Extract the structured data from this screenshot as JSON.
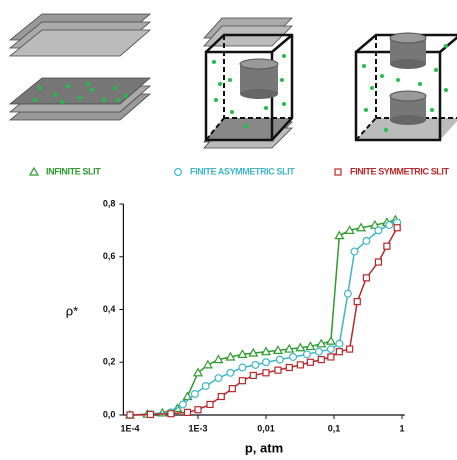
{
  "chart_data": {
    "type": "line",
    "xscale": "log",
    "x_label": "p, atm",
    "y_label": "ρ*",
    "xlim": [
      8e-05,
      1.1
    ],
    "xticks": [
      {
        "value": 0.0001,
        "label": "1E-4"
      },
      {
        "value": 0.001,
        "label": "1E-3"
      },
      {
        "value": 0.01,
        "label": "0,01"
      },
      {
        "value": 0.1,
        "label": "0,1"
      },
      1
    ],
    "ylim": [
      0,
      0.8
    ],
    "yticks": [
      {
        "value": 0,
        "label": "0,0"
      },
      {
        "value": 0.2,
        "label": "0,2"
      },
      {
        "value": 0.4,
        "label": "0,4"
      },
      {
        "value": 0.6,
        "label": "0,6"
      },
      {
        "value": 0.8,
        "label": "0,8"
      }
    ],
    "series": [
      {
        "name": "INFINITE SLIT",
        "color": "#2e9b2e",
        "marker": "triangle",
        "x": [
          0.0001,
          0.00018,
          0.0003,
          0.0005,
          0.0007,
          0.001,
          0.0014,
          0.002,
          0.003,
          0.0045,
          0.0065,
          0.01,
          0.015,
          0.022,
          0.032,
          0.045,
          0.065,
          0.09,
          0.12,
          0.17,
          0.25,
          0.4,
          0.6,
          0.8
        ],
        "values": [
          0,
          0.003,
          0.008,
          0.025,
          0.07,
          0.16,
          0.19,
          0.21,
          0.22,
          0.23,
          0.235,
          0.24,
          0.245,
          0.25,
          0.255,
          0.26,
          0.27,
          0.28,
          0.68,
          0.7,
          0.71,
          0.72,
          0.73,
          0.74
        ]
      },
      {
        "name": "FINITE ASYMMETRIC SLIT",
        "color": "#3fb6c8",
        "marker": "circle",
        "x": [
          0.0001,
          0.0002,
          0.0004,
          0.0006,
          0.0009,
          0.0013,
          0.002,
          0.003,
          0.0045,
          0.007,
          0.01,
          0.016,
          0.025,
          0.04,
          0.06,
          0.09,
          0.12,
          0.16,
          0.2,
          0.3,
          0.45,
          0.65,
          0.85
        ],
        "values": [
          0,
          0.003,
          0.01,
          0.04,
          0.08,
          0.11,
          0.14,
          0.16,
          0.18,
          0.19,
          0.2,
          0.21,
          0.22,
          0.23,
          0.24,
          0.25,
          0.27,
          0.46,
          0.62,
          0.66,
          0.7,
          0.72,
          0.73
        ]
      },
      {
        "name": "FINITE SYMMETRIC SLIT",
        "color": "#b8282a",
        "marker": "square",
        "x": [
          0.0001,
          0.0002,
          0.0004,
          0.0007,
          0.001,
          0.0015,
          0.0022,
          0.0032,
          0.0045,
          0.0065,
          0.01,
          0.015,
          0.022,
          0.032,
          0.045,
          0.065,
          0.09,
          0.12,
          0.17,
          0.22,
          0.3,
          0.45,
          0.6,
          0.85
        ],
        "values": [
          0,
          0.002,
          0.005,
          0.01,
          0.02,
          0.04,
          0.07,
          0.1,
          0.13,
          0.15,
          0.16,
          0.17,
          0.18,
          0.19,
          0.2,
          0.21,
          0.22,
          0.24,
          0.25,
          0.43,
          0.52,
          0.58,
          0.64,
          0.71
        ]
      }
    ]
  }
}
